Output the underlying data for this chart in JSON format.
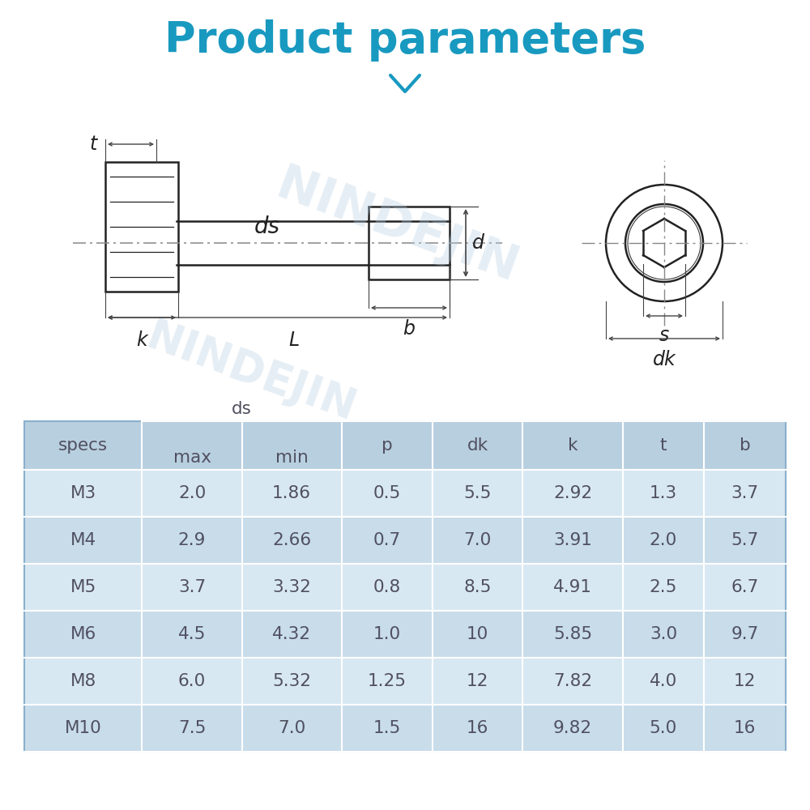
{
  "title": "Product parameters",
  "title_color": "#1899c0",
  "title_fontsize": 38,
  "background_color": "#ffffff",
  "table_header_bg": "#b8cfe0",
  "table_row_bg1": "#c8dcea",
  "table_row_bg2": "#d8e8f2",
  "table_border_color": "#ffffff",
  "table_text_color": "#505060",
  "table_data": [
    [
      "M3",
      "2.0",
      "1.86",
      "0.5",
      "5.5",
      "2.92",
      "1.3",
      "3.7"
    ],
    [
      "M4",
      "2.9",
      "2.66",
      "0.7",
      "7.0",
      "3.91",
      "2.0",
      "5.7"
    ],
    [
      "M5",
      "3.7",
      "3.32",
      "0.8",
      "8.5",
      "4.91",
      "2.5",
      "6.7"
    ],
    [
      "M6",
      "4.5",
      "4.32",
      "1.0",
      "10",
      "5.85",
      "3.0",
      "9.7"
    ],
    [
      "M8",
      "6.0",
      "5.32",
      "1.25",
      "12",
      "7.82",
      "4.0",
      "12"
    ],
    [
      "M10",
      "7.5",
      "7.0",
      "1.5",
      "16",
      "9.82",
      "5.0",
      "16"
    ]
  ],
  "diagram_line_color": "#222222",
  "dim_line_color": "#444444",
  "centerline_color": "#888888",
  "watermark_color": "#b8d0e4",
  "watermark_alpha": 0.35
}
